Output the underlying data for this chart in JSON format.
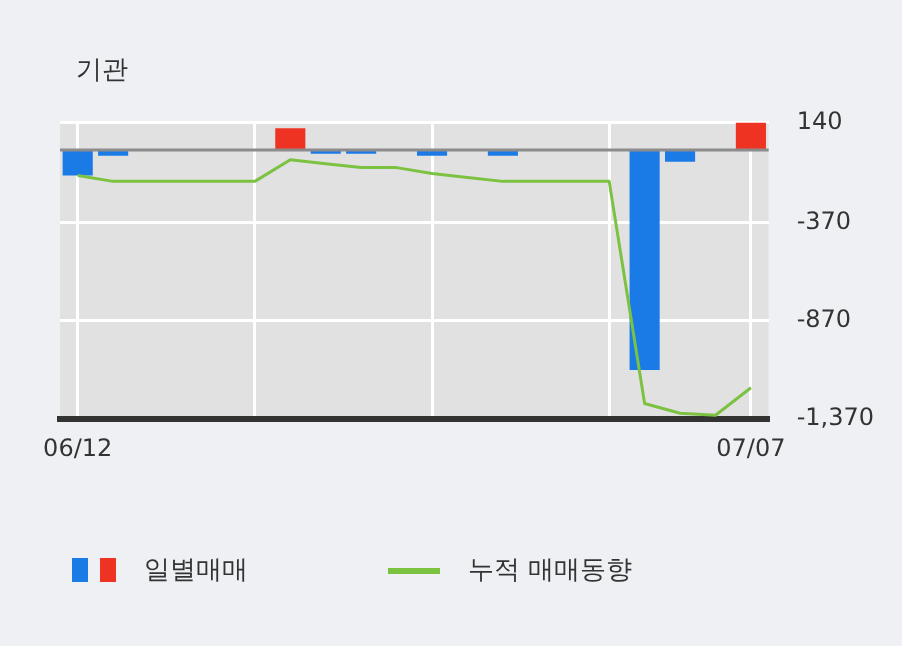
{
  "chart_data": {
    "type": "bar",
    "title": "기관",
    "categories": [
      "06/12",
      null,
      null,
      null,
      null,
      null,
      null,
      null,
      null,
      null,
      null,
      null,
      null,
      null,
      null,
      null,
      null,
      null,
      null,
      "07/07"
    ],
    "series": [
      {
        "name": "일별매매",
        "colors": [
          "#1b7be6",
          "#1b7be6",
          "#1b7be6",
          "#1b7be6",
          "#1b7be6",
          "#1b7be6",
          "#ee3322",
          "#1b7be6",
          "#1b7be6",
          "#1b7be6",
          "#1b7be6",
          "#1b7be6",
          "#1b7be6",
          "#1b7be6",
          "#1b7be6",
          "#1b7be6",
          "#1b7be6",
          "#1b7be6",
          "#1b7be6",
          "#ee3322"
        ],
        "values": [
          -130,
          -30,
          0,
          0,
          0,
          0,
          110,
          -20,
          -20,
          0,
          -30,
          0,
          -30,
          0,
          0,
          0,
          -1120,
          -60,
          0,
          140
        ]
      },
      {
        "name": "누적 매매동향",
        "type": "line",
        "color": "#7cc241",
        "values": [
          -130,
          -160,
          -160,
          -160,
          -160,
          -160,
          -50,
          -70,
          -90,
          -90,
          -120,
          -140,
          -160,
          -160,
          -160,
          -160,
          -1290,
          -1340,
          -1350,
          -1210
        ]
      }
    ],
    "ylim": [
      -1370,
      140
    ],
    "yticks": [
      140,
      -370,
      -870,
      {
        "value": -1370,
        "label": "-1,370"
      }
    ],
    "ref_lines": [
      {
        "axis": "y",
        "value": 0,
        "color": "#8c8c8c"
      }
    ],
    "grid": true,
    "legend": "bottom",
    "marker": "none"
  }
}
